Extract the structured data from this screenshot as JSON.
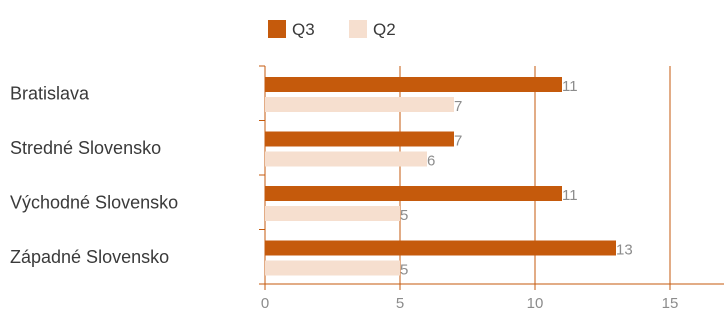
{
  "chart_data": {
    "type": "bar",
    "orientation": "horizontal",
    "categories": [
      "Bratislava",
      "Stredné Slovensko",
      "Východné Slovensko",
      "Západné Slovensko"
    ],
    "series": [
      {
        "name": "Q3",
        "values": [
          11,
          7,
          11,
          13
        ],
        "color": "#c55a0c"
      },
      {
        "name": "Q2",
        "values": [
          7,
          6,
          5,
          5
        ],
        "color": "#f6dfcf"
      }
    ],
    "xlim": [
      0,
      17
    ],
    "xticks": [
      0,
      5,
      10,
      15
    ],
    "legend_position": "top",
    "grid": "vertical",
    "axis_color": "#c55a0c",
    "title": "",
    "xlabel": "",
    "ylabel": ""
  }
}
